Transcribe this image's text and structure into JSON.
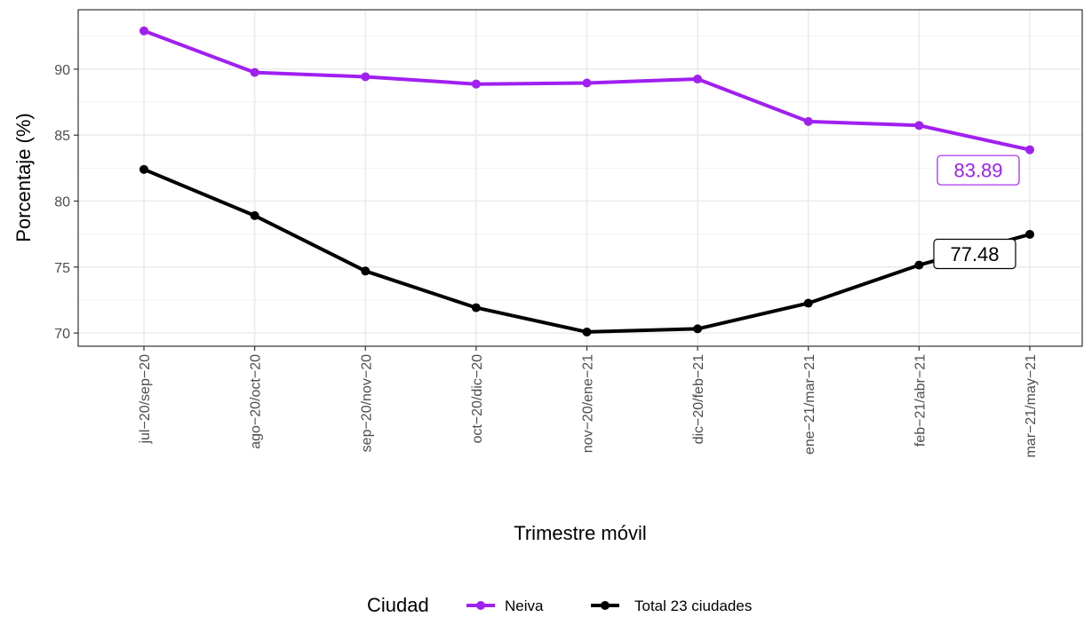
{
  "chart_data": {
    "type": "line",
    "xlabel": "Trimestre móvil",
    "ylabel": "Porcentaje (%)",
    "categories": [
      "jul−20/sep−20",
      "ago−20/oct−20",
      "sep−20/nov−20",
      "oct−20/dic−20",
      "nov−20/ene−21",
      "dic−20/feb−21",
      "ene−21/mar−21",
      "feb−21/abr−21",
      "mar−21/may−21"
    ],
    "ylim": [
      69,
      94.5
    ],
    "yticks": [
      70,
      75,
      80,
      85,
      90
    ],
    "grid": true,
    "legend_title": "Ciudad",
    "legend_position": "bottom",
    "series": [
      {
        "name": "Neiva",
        "color": "#a020f0",
        "values": [
          92.9,
          89.75,
          89.42,
          88.87,
          88.95,
          89.25,
          86.03,
          85.73,
          83.89
        ],
        "end_label": "83.89"
      },
      {
        "name": "Total 23 ciudades",
        "color": "#000000",
        "values": [
          82.4,
          78.9,
          74.7,
          71.92,
          70.08,
          70.32,
          72.26,
          75.15,
          77.48
        ],
        "end_label": "77.48"
      }
    ]
  }
}
